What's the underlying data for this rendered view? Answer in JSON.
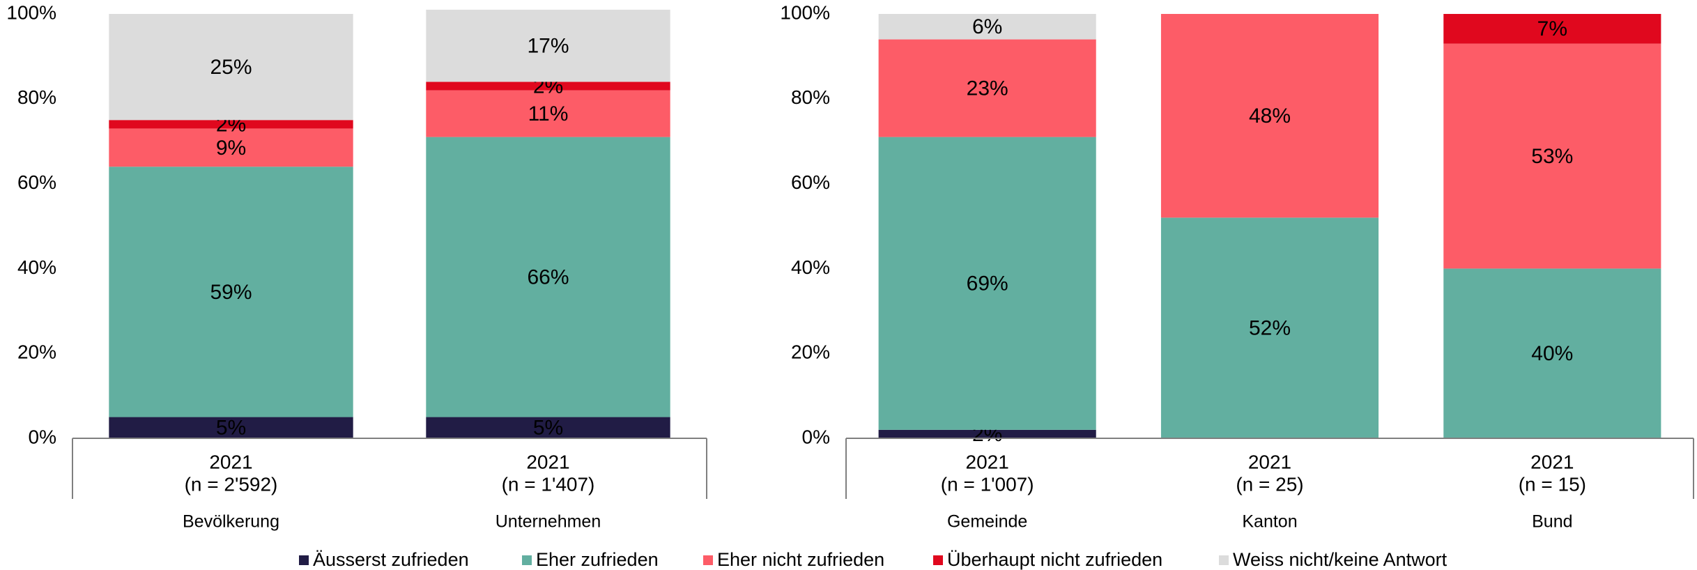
{
  "chart_data": [
    {
      "type": "stacked_bar",
      "categories": [
        "2021",
        "2021"
      ],
      "category_notes": [
        "(n = 2'592)",
        "(n = 1'407)"
      ],
      "groups": [
        "Bevölkerung",
        "Unternehmen"
      ],
      "ylim": [
        0,
        100
      ],
      "yticks": [
        {
          "value": 0,
          "label": "0%"
        },
        {
          "value": 20,
          "label": "20%"
        },
        {
          "value": 40,
          "label": "40%"
        },
        {
          "value": 60,
          "label": "60%"
        },
        {
          "value": 80,
          "label": "80%"
        },
        {
          "value": 100,
          "label": "100%"
        }
      ],
      "series": [
        {
          "name": "Äusserst zufrieden",
          "color": "#211c45",
          "values": [
            5,
            5
          ],
          "value_labels": [
            "5%",
            "5%"
          ]
        },
        {
          "name": "Eher zufrieden",
          "color": "#62afa0",
          "values": [
            59,
            66
          ],
          "value_labels": [
            "59%",
            "66%"
          ]
        },
        {
          "name": "Eher nicht zufrieden",
          "color": "#fd5c67",
          "values": [
            9,
            11
          ],
          "value_labels": [
            "9%",
            "11%"
          ]
        },
        {
          "name": "Überhaupt nicht zufrieden",
          "color": "#e0081e",
          "values": [
            2,
            2
          ],
          "value_labels": [
            "2%",
            "2%"
          ]
        },
        {
          "name": "Weiss nicht/keine Antwort",
          "color": "#dcdcdc",
          "values": [
            25,
            17
          ],
          "value_labels": [
            "25%",
            "17%"
          ]
        }
      ]
    },
    {
      "type": "stacked_bar",
      "categories": [
        "2021",
        "2021",
        "2021"
      ],
      "category_notes": [
        "(n = 1'007)",
        "(n = 25)",
        "(n = 15)"
      ],
      "groups": [
        "Gemeinde",
        "Kanton",
        "Bund"
      ],
      "ylim": [
        0,
        100
      ],
      "yticks": [
        {
          "value": 0,
          "label": "0%"
        },
        {
          "value": 20,
          "label": "20%"
        },
        {
          "value": 40,
          "label": "40%"
        },
        {
          "value": 60,
          "label": "60%"
        },
        {
          "value": 80,
          "label": "80%"
        },
        {
          "value": 100,
          "label": "100%"
        }
      ],
      "series": [
        {
          "color": "#211c45",
          "values": [
            2,
            null,
            null
          ],
          "value_labels": [
            "2%",
            null,
            null
          ]
        },
        {
          "color": "#62afa0",
          "values": [
            69,
            52,
            40
          ],
          "value_labels": [
            "69%",
            "52%",
            "40%"
          ]
        },
        {
          "color": "#fd5c67",
          "values": [
            23,
            48,
            53
          ],
          "value_labels": [
            "23%",
            "48%",
            "53%"
          ]
        },
        {
          "color": "#e0081e",
          "values": [
            null,
            null,
            7
          ],
          "value_labels": [
            null,
            null,
            "7%"
          ]
        },
        {
          "color": "#dcdcdc",
          "values": [
            6,
            null,
            null
          ],
          "value_labels": [
            "6%",
            null,
            null
          ]
        }
      ]
    }
  ]
}
